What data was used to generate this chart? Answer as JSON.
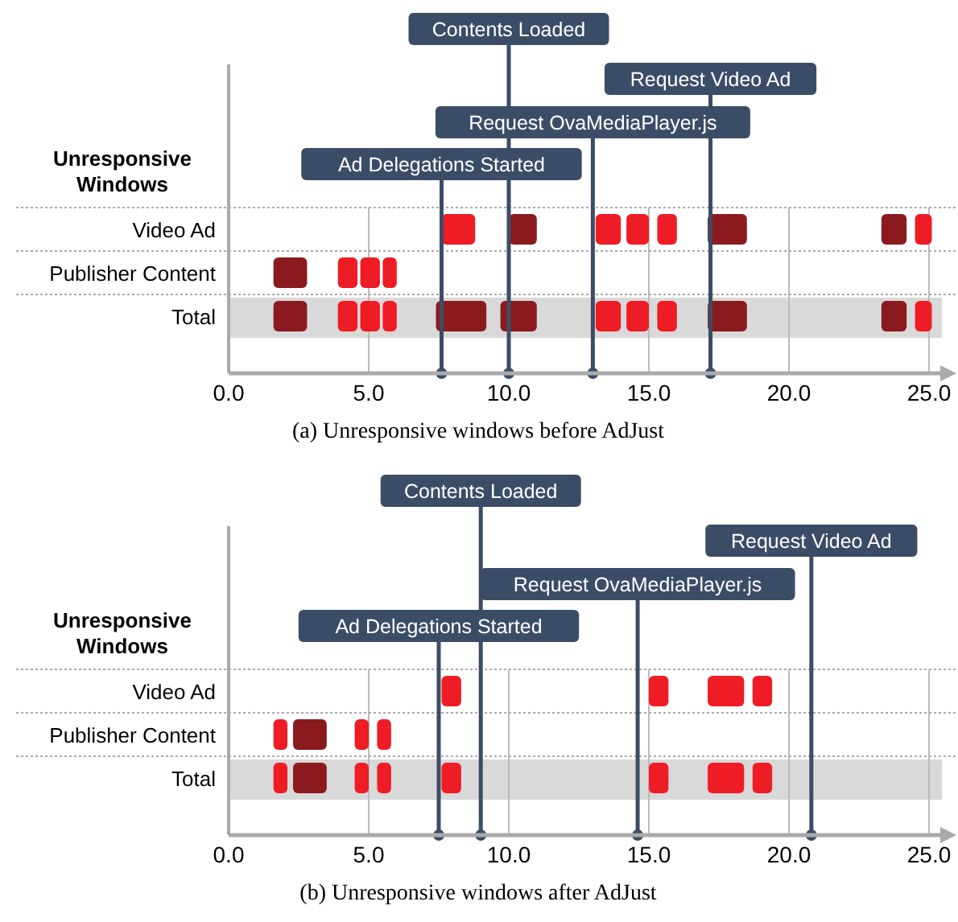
{
  "chart_data": [
    {
      "type": "bar",
      "orientation": "horizontal",
      "ylabel": "Unresponsive Windows",
      "title": "(a) Unresponsive windows before AdJust",
      "categories": [
        "Video Ad",
        "Publisher Content",
        "Total"
      ],
      "xlim": [
        0,
        25
      ],
      "xticks": [
        {
          "value": 0,
          "label": "0.0"
        },
        {
          "value": 5,
          "label": "5.0"
        },
        {
          "value": 10,
          "label": "10.0"
        },
        {
          "value": 15,
          "label": "15.0"
        },
        {
          "value": 20,
          "label": "20.0"
        },
        {
          "value": 25,
          "label": "25.0"
        }
      ],
      "grid": "x",
      "bands": [
        {
          "axis": "y",
          "from": "Total",
          "to": "Total",
          "color": "#d9d9d9"
        }
      ],
      "ref_lines": [
        {
          "axis": "x",
          "value": 7.6,
          "label": "Ad Delegations Started",
          "color": "#3b4d66"
        },
        {
          "axis": "x",
          "value": 10.0,
          "label": "Contents Loaded",
          "color": "#3b4d66"
        },
        {
          "axis": "x",
          "value": 13.0,
          "label": "Request OvaMediaPlayer.js",
          "color": "#3b4d66"
        },
        {
          "axis": "x",
          "value": 17.2,
          "label": "Request Video Ad",
          "color": "#3b4d66"
        }
      ],
      "series": [
        {
          "color": "#8b1a1e",
          "base": [
            null,
            1.6,
            1.6
          ],
          "values": [
            null,
            1.2,
            1.2
          ]
        },
        {
          "color": "#ee1c25",
          "base": [
            null,
            3.9,
            3.9
          ],
          "values": [
            null,
            0.7,
            0.7
          ]
        },
        {
          "color": "#ee1c25",
          "base": [
            null,
            4.7,
            4.7
          ],
          "values": [
            null,
            0.7,
            0.7
          ]
        },
        {
          "color": "#ee1c25",
          "base": [
            null,
            5.5,
            5.5
          ],
          "values": [
            null,
            0.5,
            0.5
          ]
        },
        {
          "color": "#ee1c25",
          "base": [
            7.6,
            null,
            null
          ],
          "values": [
            1.2,
            null,
            null
          ]
        },
        {
          "color": "#8b1a1e",
          "base": [
            null,
            null,
            7.4
          ],
          "values": [
            null,
            null,
            1.8
          ]
        },
        {
          "color": "#8b1a1e",
          "base": [
            10.0,
            null,
            9.7
          ],
          "values": [
            1.0,
            null,
            1.3
          ]
        },
        {
          "color": "#ee1c25",
          "base": [
            13.1,
            null,
            13.1
          ],
          "values": [
            0.9,
            null,
            0.9
          ]
        },
        {
          "color": "#ee1c25",
          "base": [
            14.2,
            null,
            14.2
          ],
          "values": [
            0.8,
            null,
            0.8
          ]
        },
        {
          "color": "#ee1c25",
          "base": [
            15.3,
            null,
            15.3
          ],
          "values": [
            0.7,
            null,
            0.7
          ]
        },
        {
          "color": "#8b1a1e",
          "base": [
            17.1,
            null,
            17.1
          ],
          "values": [
            1.4,
            null,
            1.4
          ]
        },
        {
          "color": "#8b1a1e",
          "base": [
            23.3,
            null,
            23.3
          ],
          "values": [
            0.9,
            null,
            0.9
          ]
        },
        {
          "color": "#ee1c25",
          "base": [
            24.5,
            null,
            24.5
          ],
          "values": [
            0.6,
            null,
            0.6
          ]
        }
      ]
    },
    {
      "type": "bar",
      "orientation": "horizontal",
      "ylabel": "Unresponsive Windows",
      "title": "(b) Unresponsive windows after AdJust",
      "categories": [
        "Video Ad",
        "Publisher Content",
        "Total"
      ],
      "xlim": [
        0,
        25
      ],
      "xticks": [
        {
          "value": 0,
          "label": "0.0"
        },
        {
          "value": 5,
          "label": "5.0"
        },
        {
          "value": 10,
          "label": "10.0"
        },
        {
          "value": 15,
          "label": "15.0"
        },
        {
          "value": 20,
          "label": "20.0"
        },
        {
          "value": 25,
          "label": "25.0"
        }
      ],
      "grid": "x",
      "bands": [
        {
          "axis": "y",
          "from": "Total",
          "to": "Total",
          "color": "#d9d9d9"
        }
      ],
      "ref_lines": [
        {
          "axis": "x",
          "value": 7.5,
          "label": "Ad Delegations Started",
          "color": "#3b4d66"
        },
        {
          "axis": "x",
          "value": 9.0,
          "label": "Contents Loaded",
          "color": "#3b4d66"
        },
        {
          "axis": "x",
          "value": 14.6,
          "label": "Request OvaMediaPlayer.js",
          "color": "#3b4d66"
        },
        {
          "axis": "x",
          "value": 20.8,
          "label": "Request Video Ad",
          "color": "#3b4d66"
        }
      ],
      "series": [
        {
          "color": "#ee1c25",
          "base": [
            null,
            1.6,
            1.6
          ],
          "values": [
            null,
            0.5,
            0.5
          ]
        },
        {
          "color": "#8b1a1e",
          "base": [
            null,
            2.3,
            2.3
          ],
          "values": [
            null,
            1.2,
            1.2
          ]
        },
        {
          "color": "#ee1c25",
          "base": [
            null,
            4.5,
            4.5
          ],
          "values": [
            null,
            0.5,
            0.5
          ]
        },
        {
          "color": "#ee1c25",
          "base": [
            null,
            5.3,
            5.3
          ],
          "values": [
            null,
            0.5,
            0.5
          ]
        },
        {
          "color": "#ee1c25",
          "base": [
            7.6,
            null,
            7.6
          ],
          "values": [
            0.7,
            null,
            0.7
          ]
        },
        {
          "color": "#ee1c25",
          "base": [
            15.0,
            null,
            15.0
          ],
          "values": [
            0.7,
            null,
            0.7
          ]
        },
        {
          "color": "#ee1c25",
          "base": [
            17.1,
            null,
            17.1
          ],
          "values": [
            1.3,
            null,
            1.3
          ]
        },
        {
          "color": "#ee1c25",
          "base": [
            18.7,
            null,
            18.7
          ],
          "values": [
            0.7,
            null,
            0.7
          ]
        }
      ]
    }
  ]
}
